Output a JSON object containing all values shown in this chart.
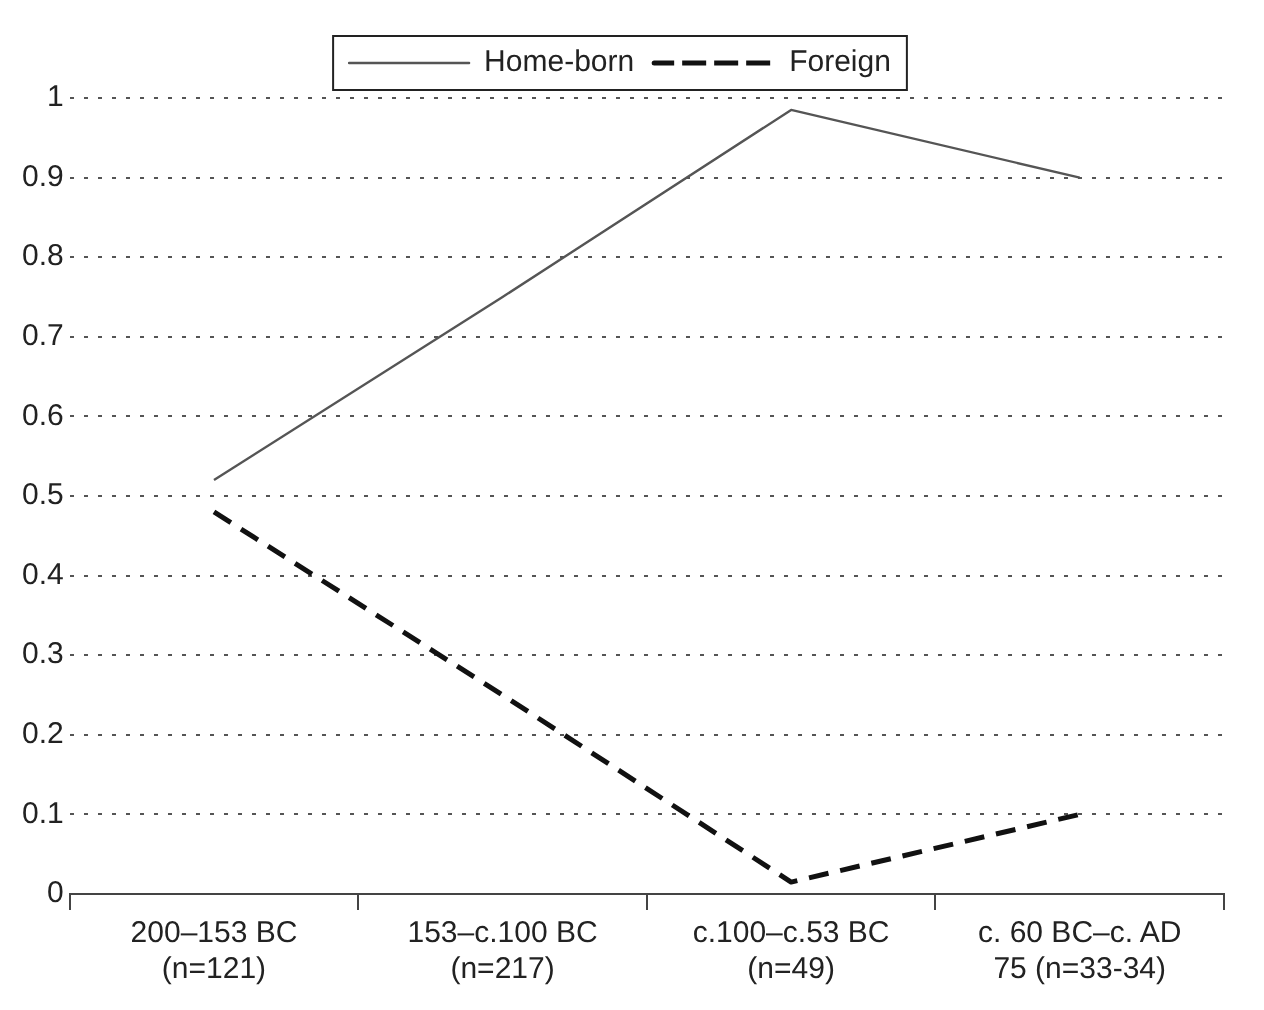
{
  "chart_data": {
    "type": "line",
    "categories": [
      "200–153 BC (n=121)",
      "153–c.100 BC (n=217)",
      "c.100–c.53 BC (n=49)",
      "c. 60 BC–c. AD 75 (n=33-34)"
    ],
    "series": [
      {
        "name": "Home-born",
        "color": "#555555",
        "line_style": "solid",
        "values": [
          0.52,
          0.75,
          0.985,
          0.9
        ]
      },
      {
        "name": "Foreign",
        "color": "#111111",
        "line_style": "dashed",
        "values": [
          0.48,
          0.25,
          0.015,
          0.1
        ]
      }
    ],
    "ylim": [
      0,
      1
    ],
    "yticks": [
      0,
      0.1,
      0.2,
      0.3,
      0.4,
      0.5,
      0.6,
      0.7,
      0.8,
      0.9,
      1
    ],
    "grid": "y",
    "legend": "top",
    "marker": "none"
  }
}
